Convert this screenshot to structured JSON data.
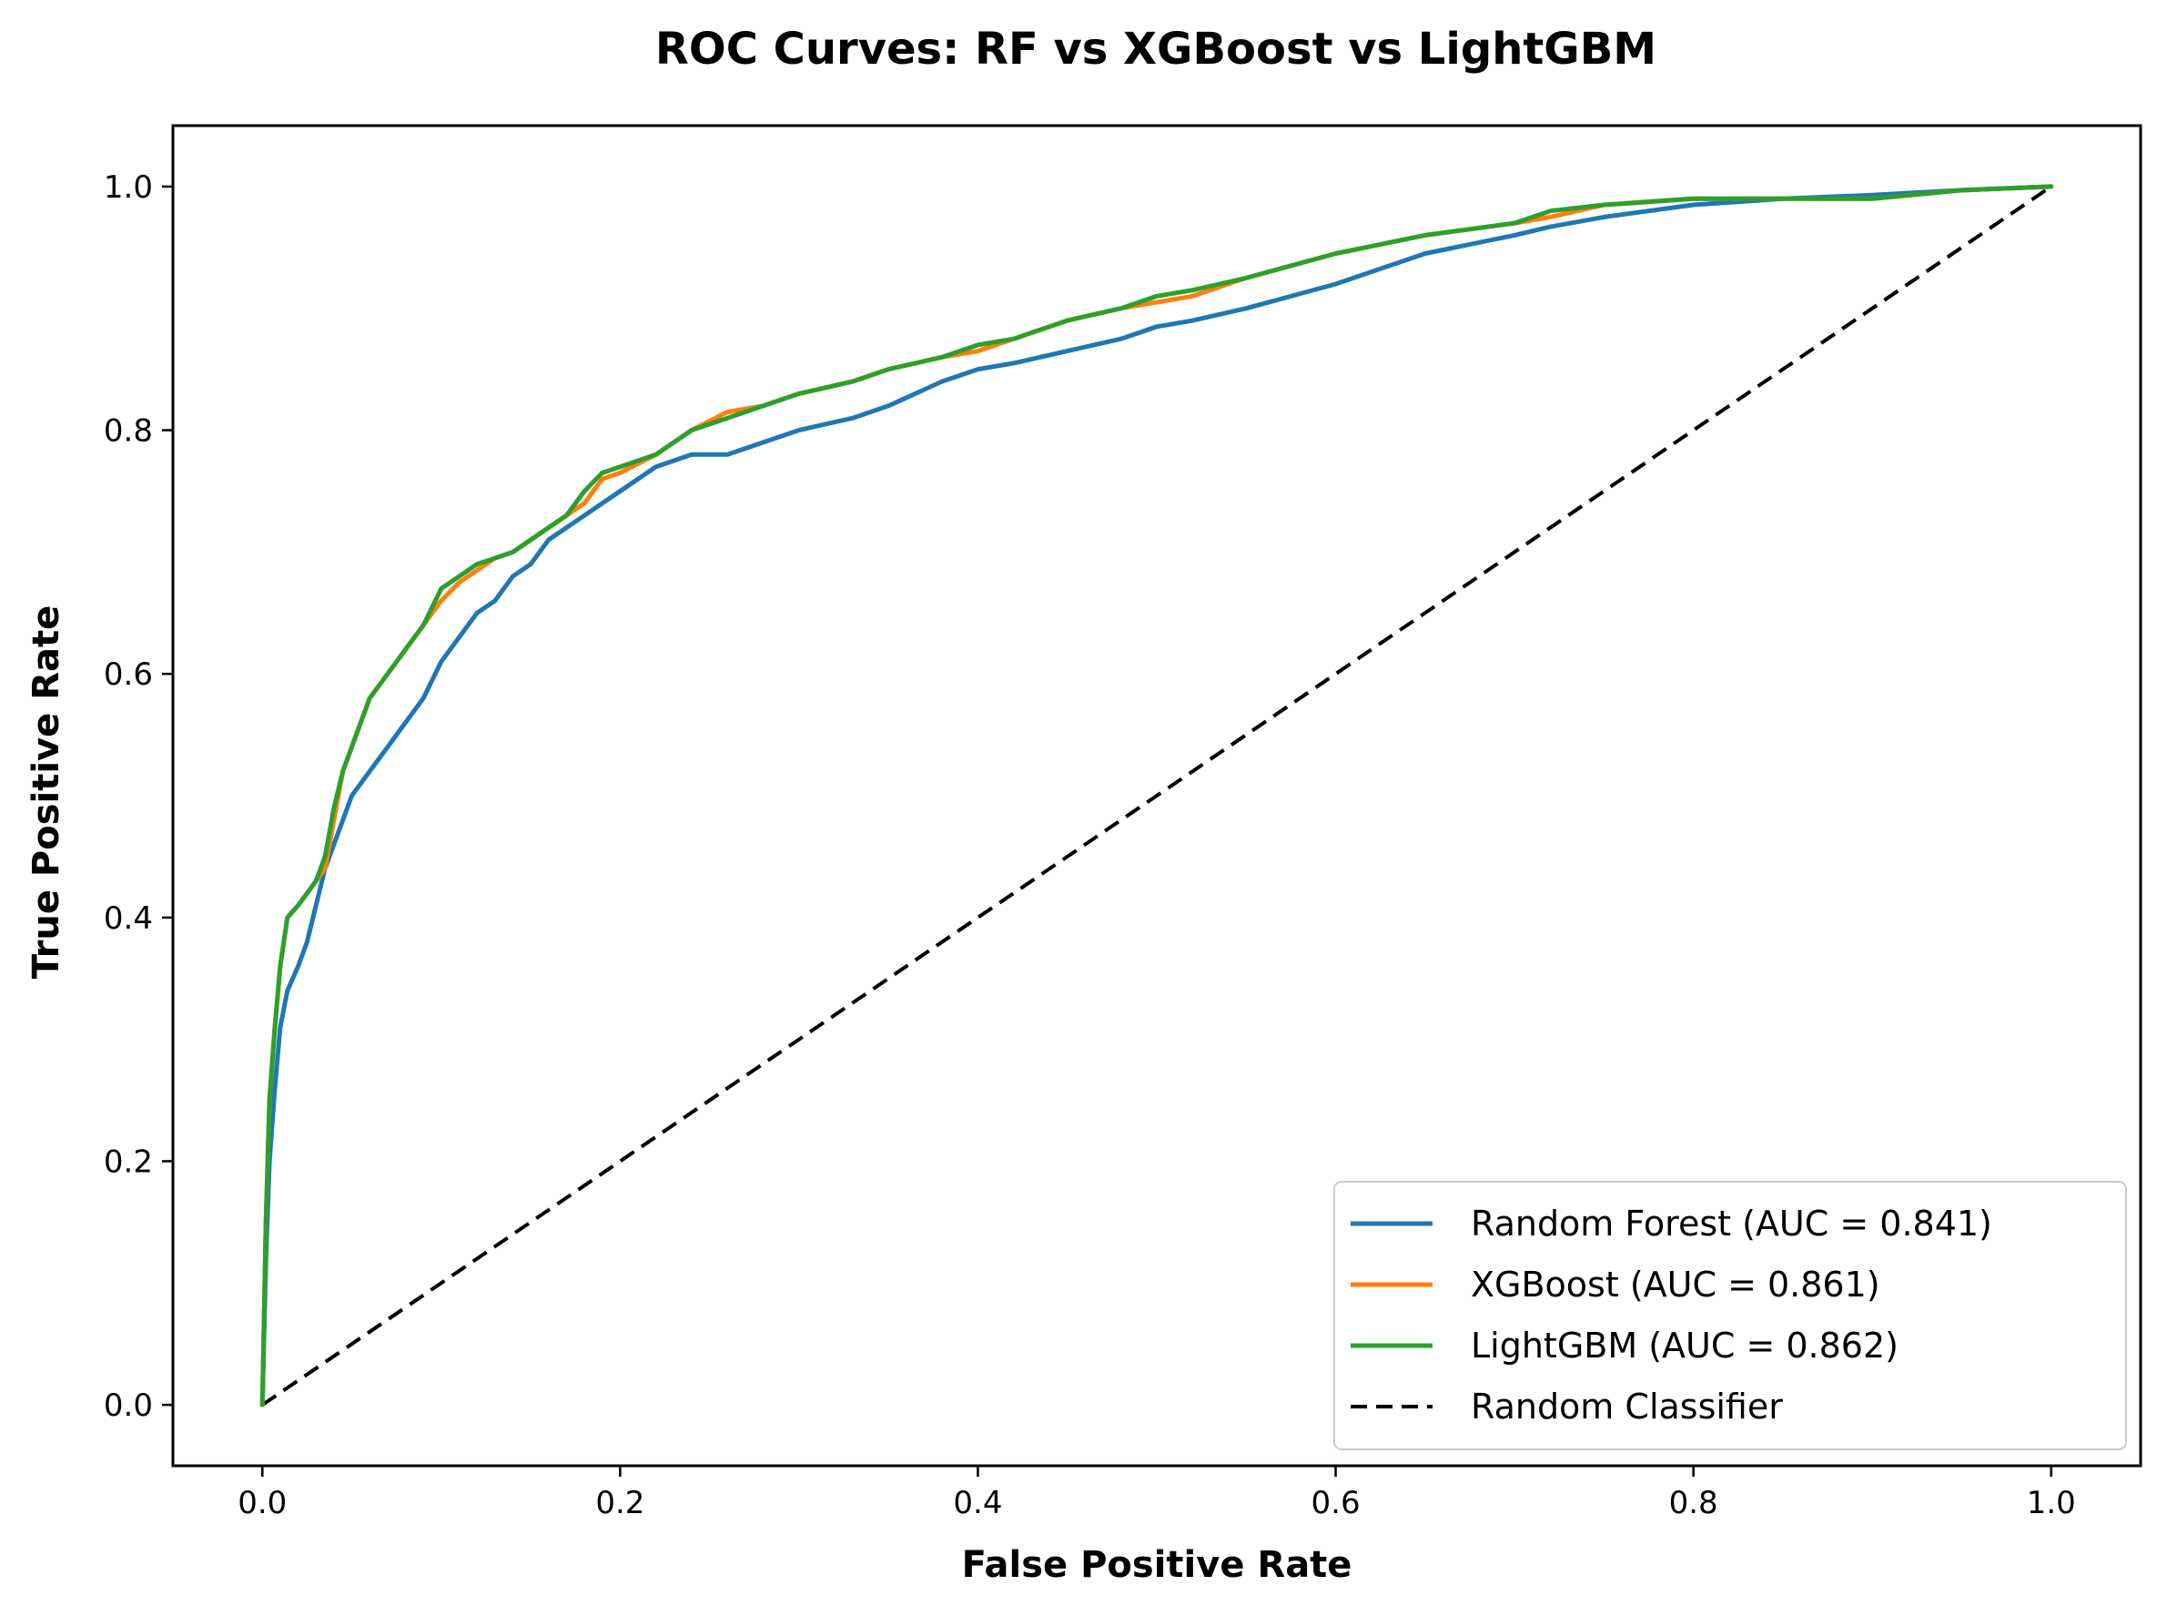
{
  "chart_data": {
    "type": "line",
    "title": "ROC Curves: RF vs XGBoost vs LightGBM",
    "xlabel": "False Positive Rate",
    "ylabel": "True Positive Rate",
    "xlim": [
      -0.05,
      1.05
    ],
    "ylim": [
      -0.05,
      1.05
    ],
    "xticks": [
      "0.0",
      "0.2",
      "0.4",
      "0.6",
      "0.8",
      "1.0"
    ],
    "yticks": [
      "0.0",
      "0.2",
      "0.4",
      "0.6",
      "0.8",
      "1.0"
    ],
    "grid": false,
    "legend_position": "lower-right",
    "series": [
      {
        "name": "Random Forest (AUC = 0.841)",
        "color": "#1f77b4",
        "x": [
          0.0,
          0.002,
          0.004,
          0.007,
          0.01,
          0.014,
          0.02,
          0.025,
          0.03,
          0.035,
          0.04,
          0.045,
          0.05,
          0.06,
          0.07,
          0.08,
          0.09,
          0.1,
          0.11,
          0.12,
          0.13,
          0.14,
          0.15,
          0.16,
          0.17,
          0.18,
          0.19,
          0.2,
          0.22,
          0.24,
          0.26,
          0.28,
          0.3,
          0.33,
          0.35,
          0.38,
          0.4,
          0.42,
          0.45,
          0.48,
          0.5,
          0.52,
          0.55,
          0.6,
          0.65,
          0.7,
          0.72,
          0.75,
          0.8,
          0.85,
          0.9,
          0.95,
          1.0
        ],
        "y": [
          0.0,
          0.12,
          0.2,
          0.26,
          0.31,
          0.34,
          0.36,
          0.38,
          0.41,
          0.44,
          0.46,
          0.48,
          0.5,
          0.52,
          0.54,
          0.56,
          0.58,
          0.61,
          0.63,
          0.65,
          0.66,
          0.68,
          0.69,
          0.71,
          0.72,
          0.73,
          0.74,
          0.75,
          0.77,
          0.78,
          0.78,
          0.79,
          0.8,
          0.81,
          0.82,
          0.84,
          0.85,
          0.855,
          0.865,
          0.875,
          0.885,
          0.89,
          0.9,
          0.92,
          0.945,
          0.96,
          0.967,
          0.975,
          0.985,
          0.99,
          0.993,
          0.997,
          1.0
        ]
      },
      {
        "name": "XGBoost (AUC = 0.861)",
        "color": "#ff7f0e",
        "x": [
          0.0,
          0.002,
          0.004,
          0.007,
          0.01,
          0.014,
          0.02,
          0.025,
          0.03,
          0.035,
          0.04,
          0.045,
          0.05,
          0.06,
          0.07,
          0.08,
          0.09,
          0.1,
          0.11,
          0.12,
          0.13,
          0.14,
          0.15,
          0.16,
          0.17,
          0.18,
          0.19,
          0.2,
          0.22,
          0.24,
          0.26,
          0.28,
          0.3,
          0.33,
          0.35,
          0.38,
          0.4,
          0.42,
          0.45,
          0.48,
          0.5,
          0.52,
          0.55,
          0.6,
          0.65,
          0.7,
          0.72,
          0.75,
          0.8,
          0.85,
          0.9,
          0.95,
          1.0
        ],
        "y": [
          0.0,
          0.15,
          0.25,
          0.31,
          0.36,
          0.4,
          0.41,
          0.42,
          0.43,
          0.44,
          0.48,
          0.52,
          0.54,
          0.58,
          0.6,
          0.62,
          0.64,
          0.66,
          0.675,
          0.685,
          0.695,
          0.7,
          0.71,
          0.72,
          0.73,
          0.74,
          0.76,
          0.765,
          0.78,
          0.8,
          0.815,
          0.82,
          0.83,
          0.84,
          0.85,
          0.86,
          0.865,
          0.875,
          0.89,
          0.9,
          0.905,
          0.91,
          0.925,
          0.945,
          0.96,
          0.97,
          0.975,
          0.985,
          0.99,
          0.99,
          0.99,
          0.997,
          1.0
        ]
      },
      {
        "name": "LightGBM (AUC = 0.862)",
        "color": "#2ca02c",
        "x": [
          0.0,
          0.002,
          0.004,
          0.007,
          0.01,
          0.014,
          0.02,
          0.025,
          0.03,
          0.035,
          0.04,
          0.045,
          0.05,
          0.06,
          0.07,
          0.08,
          0.09,
          0.1,
          0.11,
          0.12,
          0.13,
          0.14,
          0.15,
          0.16,
          0.17,
          0.18,
          0.19,
          0.2,
          0.22,
          0.24,
          0.26,
          0.28,
          0.3,
          0.33,
          0.35,
          0.38,
          0.4,
          0.42,
          0.45,
          0.48,
          0.5,
          0.52,
          0.55,
          0.6,
          0.65,
          0.7,
          0.72,
          0.75,
          0.8,
          0.85,
          0.9,
          0.95,
          1.0
        ],
        "y": [
          0.0,
          0.15,
          0.25,
          0.31,
          0.36,
          0.4,
          0.41,
          0.42,
          0.43,
          0.45,
          0.49,
          0.52,
          0.54,
          0.58,
          0.6,
          0.62,
          0.64,
          0.67,
          0.68,
          0.69,
          0.695,
          0.7,
          0.71,
          0.72,
          0.73,
          0.75,
          0.765,
          0.77,
          0.78,
          0.8,
          0.81,
          0.82,
          0.83,
          0.84,
          0.85,
          0.86,
          0.87,
          0.875,
          0.89,
          0.9,
          0.91,
          0.915,
          0.925,
          0.945,
          0.96,
          0.97,
          0.98,
          0.985,
          0.99,
          0.99,
          0.99,
          0.997,
          1.0
        ]
      },
      {
        "name": "Random Classifier",
        "color": "#000000",
        "dashed": true,
        "x": [
          0.0,
          1.0
        ],
        "y": [
          0.0,
          1.0
        ]
      }
    ]
  }
}
